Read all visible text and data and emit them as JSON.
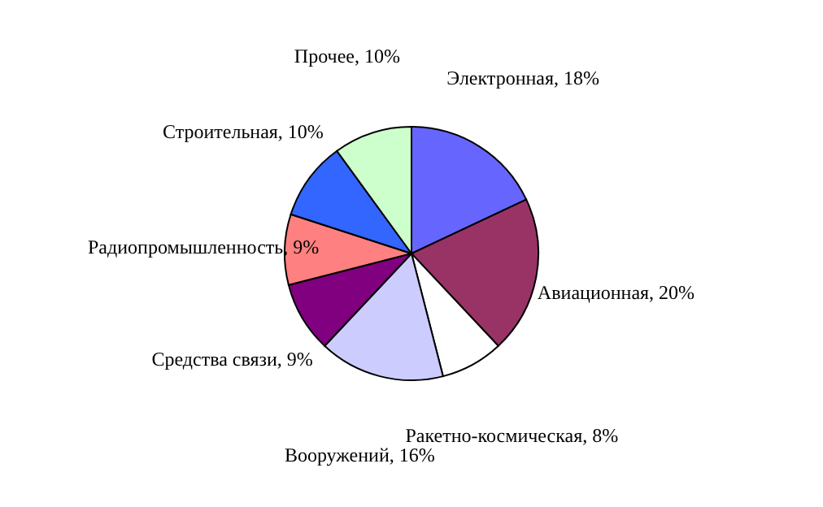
{
  "chart_data": {
    "type": "pie",
    "categories": [
      "Электронная, 18%",
      "Авиационная, 20%",
      "Ракетно-космическая, 8%",
      "Вооружений, 16%",
      "Средства связи, 9%",
      "Радиопромышленность, 9%",
      "Строительная, 10%",
      "Прочее, 10%"
    ],
    "values": [
      18,
      20,
      8,
      16,
      9,
      9,
      10,
      10
    ],
    "colors": [
      "#6666ff",
      "#993366",
      "#ffffff",
      "#ccccff",
      "#800080",
      "#ff8080",
      "#3366ff",
      "#ccffcc"
    ],
    "legend": false
  }
}
